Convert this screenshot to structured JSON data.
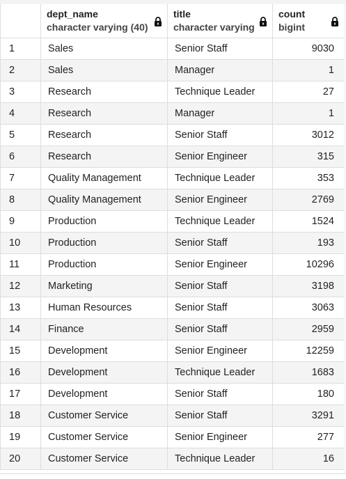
{
  "columns": [
    {
      "name": "dept_name",
      "type": "character varying (40)",
      "icon": "lock-icon"
    },
    {
      "name": "title",
      "type": "character varying",
      "icon": "lock-icon"
    },
    {
      "name": "count",
      "type": "bigint",
      "icon": "lock-icon"
    }
  ],
  "rows": [
    {
      "n": "1",
      "dept": "Sales",
      "title": "Senior Staff",
      "count": "9030"
    },
    {
      "n": "2",
      "dept": "Sales",
      "title": "Manager",
      "count": "1"
    },
    {
      "n": "3",
      "dept": "Research",
      "title": "Technique Leader",
      "count": "27"
    },
    {
      "n": "4",
      "dept": "Research",
      "title": "Manager",
      "count": "1"
    },
    {
      "n": "5",
      "dept": "Research",
      "title": "Senior Staff",
      "count": "3012"
    },
    {
      "n": "6",
      "dept": "Research",
      "title": "Senior Engineer",
      "count": "315"
    },
    {
      "n": "7",
      "dept": "Quality Management",
      "title": "Technique Leader",
      "count": "353"
    },
    {
      "n": "8",
      "dept": "Quality Management",
      "title": "Senior Engineer",
      "count": "2769"
    },
    {
      "n": "9",
      "dept": "Production",
      "title": "Technique Leader",
      "count": "1524"
    },
    {
      "n": "10",
      "dept": "Production",
      "title": "Senior Staff",
      "count": "193"
    },
    {
      "n": "11",
      "dept": "Production",
      "title": "Senior Engineer",
      "count": "10296"
    },
    {
      "n": "12",
      "dept": "Marketing",
      "title": "Senior Staff",
      "count": "3198"
    },
    {
      "n": "13",
      "dept": "Human Resources",
      "title": "Senior Staff",
      "count": "3063"
    },
    {
      "n": "14",
      "dept": "Finance",
      "title": "Senior Staff",
      "count": "2959"
    },
    {
      "n": "15",
      "dept": "Development",
      "title": "Senior Engineer",
      "count": "12259"
    },
    {
      "n": "16",
      "dept": "Development",
      "title": "Technique Leader",
      "count": "1683"
    },
    {
      "n": "17",
      "dept": "Development",
      "title": "Senior Staff",
      "count": "180"
    },
    {
      "n": "18",
      "dept": "Customer Service",
      "title": "Senior Staff",
      "count": "3291"
    },
    {
      "n": "19",
      "dept": "Customer Service",
      "title": "Senior Engineer",
      "count": "277"
    },
    {
      "n": "20",
      "dept": "Customer Service",
      "title": "Technique Leader",
      "count": "16"
    }
  ],
  "colors": {
    "stripe": "#f4f4f4",
    "border": "#dddddd",
    "text": "#222222"
  }
}
